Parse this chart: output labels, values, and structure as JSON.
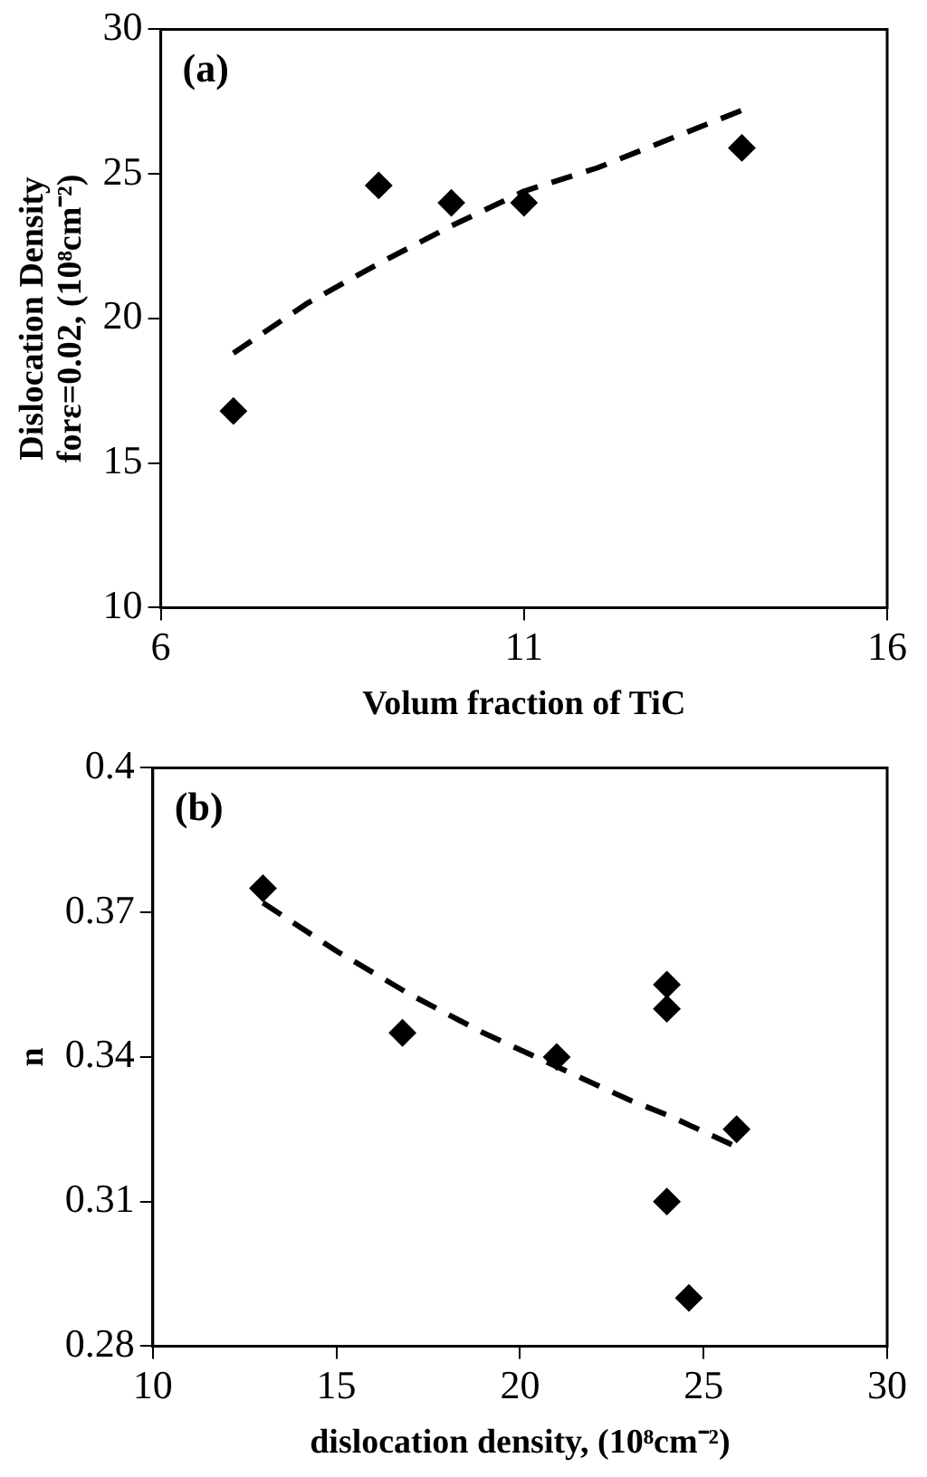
{
  "chart_data": [
    {
      "type": "scatter",
      "xlabel": "Volum fraction of TiC",
      "ylabel": "Dislocation Density\nforε=0.02, (10⁸cm⁻²)",
      "annotations": [
        "(a)"
      ],
      "xlim": [
        6,
        16
      ],
      "xticks": [
        6,
        11,
        16
      ],
      "ylim": [
        10,
        30
      ],
      "yticks": [
        10,
        15,
        20,
        25,
        30
      ],
      "grid": false,
      "legend": false,
      "marker": "diamond",
      "series": [
        {
          "color": "#000000",
          "x": [
            7,
            9,
            10,
            11,
            14
          ],
          "values": [
            16.8,
            24.6,
            24.0,
            24.0,
            25.9
          ]
        },
        {
          "type": "line",
          "line_style": "dashed",
          "marker": "none",
          "color": "#000000",
          "x": [
            7,
            8,
            9,
            10,
            11,
            12,
            13,
            14
          ],
          "values": [
            18.8,
            20.5,
            21.9,
            23.2,
            24.4,
            25.2,
            26.2,
            27.2
          ]
        }
      ]
    },
    {
      "type": "scatter",
      "xlabel": "dislocation density, (10⁸cm⁻²)",
      "ylabel": "n",
      "annotations": [
        "(b)"
      ],
      "xlim": [
        10,
        30
      ],
      "xticks": [
        10,
        15,
        20,
        25,
        30
      ],
      "ylim": [
        0.28,
        0.4
      ],
      "yticks": [
        0.28,
        0.31,
        0.34,
        0.37,
        0.4
      ],
      "grid": false,
      "legend": false,
      "marker": "diamond",
      "series": [
        {
          "color": "#000000",
          "x": [
            13,
            16.8,
            21,
            24,
            24,
            24,
            24.6,
            25.9
          ],
          "values": [
            0.375,
            0.345,
            0.34,
            0.355,
            0.35,
            0.31,
            0.29,
            0.325
          ]
        },
        {
          "type": "line",
          "line_style": "dashed",
          "marker": "none",
          "color": "#000000",
          "x": [
            13,
            15,
            17,
            19,
            21,
            23,
            24,
            26
          ],
          "values": [
            0.372,
            0.362,
            0.353,
            0.345,
            0.338,
            0.331,
            0.328,
            0.321
          ]
        }
      ]
    }
  ]
}
